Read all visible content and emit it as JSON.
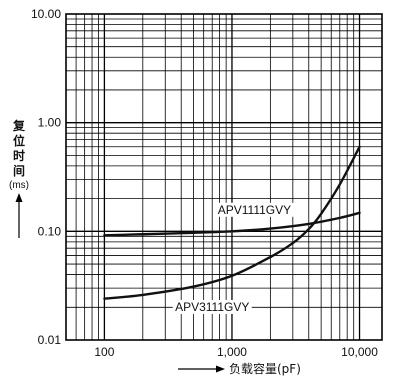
{
  "chart_data": {
    "type": "line",
    "xscale": "log",
    "yscale": "log",
    "xlim": [
      50,
      15000
    ],
    "ylim": [
      0.01,
      10
    ],
    "xticks": [
      100,
      1000,
      10000
    ],
    "xtick_labels": [
      "100",
      "1,000",
      "10,000"
    ],
    "yticks": [
      0.01,
      0.1,
      1,
      10
    ],
    "ytick_labels": [
      "0.01",
      "0.10",
      "1.00",
      "10.00"
    ],
    "ylabel_chars": [
      "复",
      "位",
      "时",
      "间"
    ],
    "ylabel_unit": "(ms)",
    "xlabel": "负载容量(pF)",
    "grid": true,
    "series": [
      {
        "name": "APV1111GVY",
        "x": [
          100,
          200,
          500,
          1000,
          2000,
          4000,
          7000,
          10000
        ],
        "y": [
          0.092,
          0.094,
          0.097,
          0.1,
          0.106,
          0.117,
          0.133,
          0.148
        ]
      },
      {
        "name": "APV3111GVY",
        "x": [
          100,
          200,
          500,
          1000,
          2000,
          3000,
          4000,
          5000,
          7000,
          10000
        ],
        "y": [
          0.024,
          0.026,
          0.031,
          0.039,
          0.058,
          0.078,
          0.105,
          0.145,
          0.27,
          0.6
        ]
      }
    ]
  }
}
